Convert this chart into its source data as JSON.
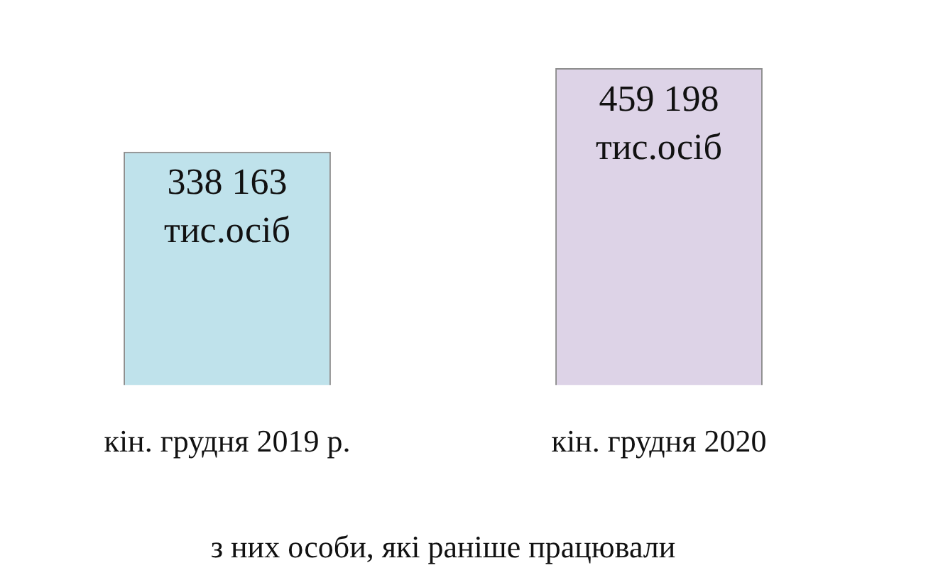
{
  "chart_data": {
    "type": "bar",
    "categories": [
      "кін. грудня 2019 р.",
      "кін. грудня 2020"
    ],
    "values": [
      338163,
      459198
    ],
    "colors": [
      "#bfe2eb",
      "#ddd3e7"
    ],
    "value_labels": [
      "338 163 тис.осіб",
      "459 198 тис.осіб"
    ],
    "xlabel": "з них особи, які раніше працювали",
    "legend": false
  }
}
